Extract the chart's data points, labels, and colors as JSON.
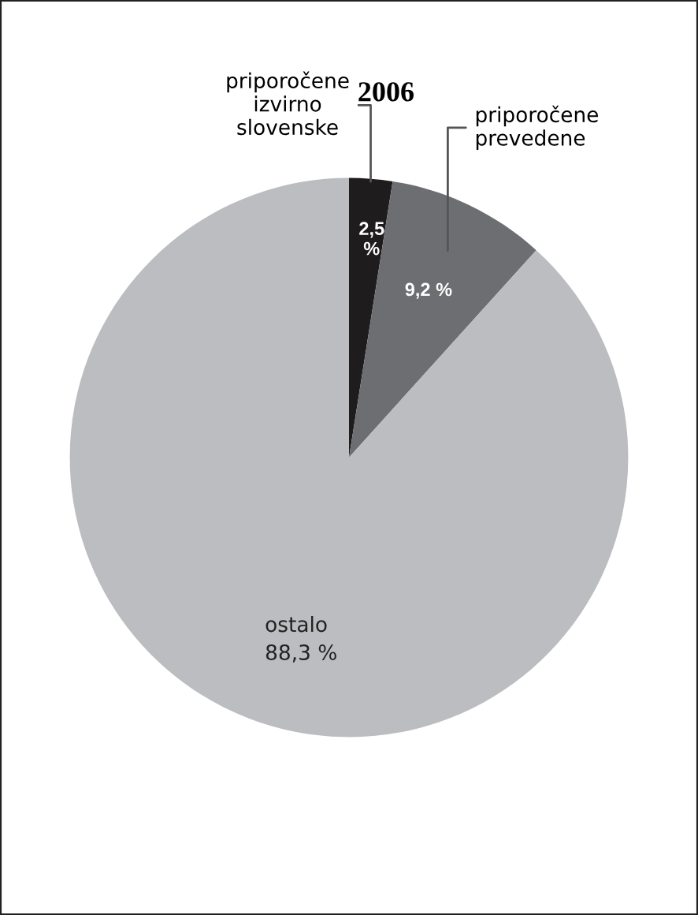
{
  "chart_data": {
    "type": "pie",
    "title": "2006",
    "categories": [
      "priporočene\nizvirno\nslovenske",
      "priporočene\nprevedene",
      "ostalo"
    ],
    "values": [
      2.5,
      9.2,
      88.3
    ],
    "colors": [
      "#1e1c1d",
      "#6d6e71",
      "#bcbdc0"
    ],
    "value_labels": [
      "2,5\n%",
      "9,2 %",
      "88,3 %"
    ],
    "legend": false
  }
}
